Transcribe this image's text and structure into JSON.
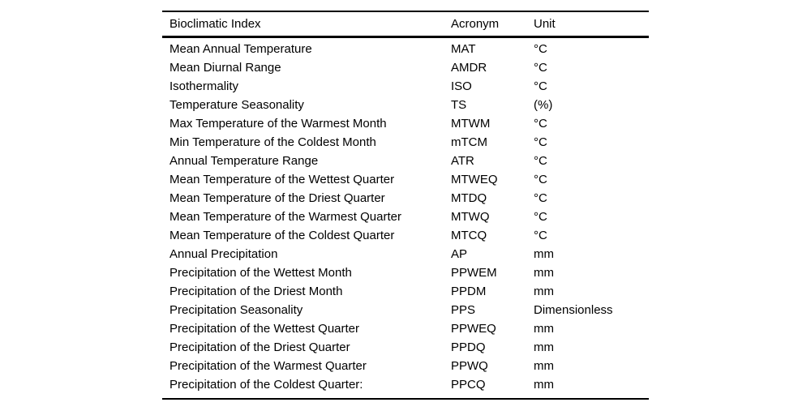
{
  "table": {
    "columns": [
      {
        "label": "Bioclimatic Index"
      },
      {
        "label": "Acronym"
      },
      {
        "label": "Unit"
      }
    ],
    "rows": [
      {
        "index": "Mean Annual Temperature",
        "acronym": "MAT",
        "unit": "°C"
      },
      {
        "index": "Mean Diurnal Range",
        "acronym": "AMDR",
        "unit": "°C"
      },
      {
        "index": "Isothermality",
        "acronym": "ISO",
        "unit": "°C"
      },
      {
        "index": "Temperature Seasonality",
        "acronym": "TS",
        "unit": "(%)"
      },
      {
        "index": "Max Temperature of the Warmest Month",
        "acronym": "MTWM",
        "unit": "°C"
      },
      {
        "index": "Min Temperature of the Coldest Month",
        "acronym": "mTCM",
        "unit": "°C"
      },
      {
        "index": "Annual Temperature Range",
        "acronym": "ATR",
        "unit": "°C"
      },
      {
        "index": "Mean Temperature of the Wettest Quarter",
        "acronym": "MTWEQ",
        "unit": "°C"
      },
      {
        "index": "Mean Temperature of the Driest Quarter",
        "acronym": "MTDQ",
        "unit": "°C"
      },
      {
        "index": "Mean Temperature of the Warmest Quarter",
        "acronym": "MTWQ",
        "unit": "°C"
      },
      {
        "index": "Mean Temperature of the Coldest Quarter",
        "acronym": "MTCQ",
        "unit": "°C"
      },
      {
        "index": "Annual Precipitation",
        "acronym": "AP",
        "unit": "mm"
      },
      {
        "index": "Precipitation of the Wettest Month",
        "acronym": "PPWEM",
        "unit": "mm"
      },
      {
        "index": "Precipitation of the Driest Month",
        "acronym": "PPDM",
        "unit": "mm"
      },
      {
        "index": "Precipitation Seasonality",
        "acronym": "PPS",
        "unit": "Dimensionless"
      },
      {
        "index": "Precipitation of the Wettest Quarter",
        "acronym": "PPWEQ",
        "unit": "mm"
      },
      {
        "index": "Precipitation of the Driest Quarter",
        "acronym": "PPDQ",
        "unit": "mm"
      },
      {
        "index": "Precipitation of the Warmest Quarter",
        "acronym": "PPWQ",
        "unit": "mm"
      },
      {
        "index": "Precipitation of the Coldest Quarter:",
        "acronym": "PPCQ",
        "unit": "mm"
      }
    ]
  },
  "colors": {
    "text": "#000000",
    "background": "#ffffff",
    "rule": "#000000"
  }
}
